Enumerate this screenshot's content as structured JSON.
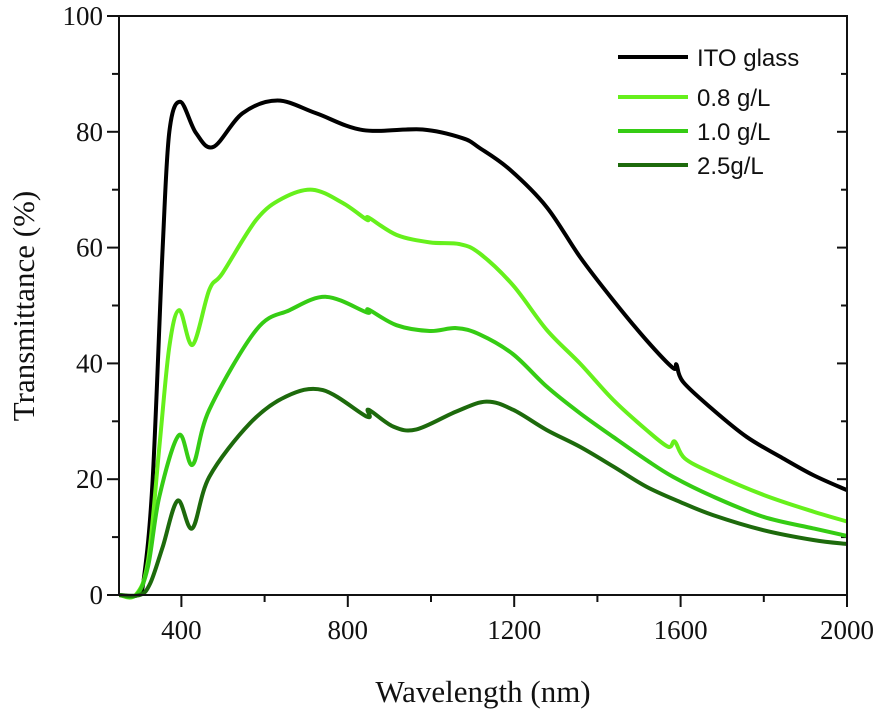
{
  "chart_data": {
    "type": "line",
    "title": "",
    "xlabel": "Wavelength (nm)",
    "ylabel": "Transmittance (%)",
    "xlim": [
      250,
      2000
    ],
    "ylim": [
      0,
      100
    ],
    "xticks": [
      400,
      800,
      1200,
      1600,
      2000
    ],
    "yticks": [
      0,
      20,
      40,
      60,
      80,
      100
    ],
    "grid": false,
    "legend_position": "top-right",
    "series": [
      {
        "name": "ITO glass",
        "color": "#000000",
        "x": [
          250,
          295,
          310,
          331,
          355,
          371,
          397,
          435,
          477,
          547,
          631,
          724,
          836,
          980,
          1076,
          1117,
          1189,
          1278,
          1358,
          1437,
          1518,
          1582,
          1590,
          1606,
          1678,
          1759,
          1839,
          1919,
          2000
        ],
        "y": [
          0,
          0,
          3,
          20,
          60,
          80,
          85.2,
          79.8,
          77.4,
          83.2,
          85.4,
          83.2,
          80.3,
          80.4,
          78.9,
          77.2,
          73.5,
          67,
          58.4,
          51,
          44,
          39.2,
          39.8,
          36.8,
          32,
          27.3,
          23.9,
          20.7,
          18.1
        ]
      },
      {
        "name": "0.8 g/L",
        "color": "#66f01c",
        "x": [
          250,
          290,
          320,
          347,
          371,
          395,
          427,
          467,
          499,
          580,
          643,
          715,
          788,
          846,
          850,
          917,
          997,
          1069,
          1117,
          1197,
          1278,
          1358,
          1438,
          1518,
          1570,
          1586,
          1610,
          1678,
          1799,
          1919,
          2000
        ],
        "y": [
          0,
          0,
          6,
          25.6,
          42.9,
          49.2,
          43.2,
          52.7,
          55.6,
          64.8,
          68.5,
          70,
          67.7,
          64.8,
          65.2,
          62.2,
          60.9,
          60.6,
          59,
          53.5,
          45.8,
          40,
          33.7,
          28.5,
          25.6,
          26.5,
          23.6,
          21,
          17.3,
          14.4,
          12.7
        ]
      },
      {
        "name": "1.0 g/L",
        "color": "#35cc14",
        "x": [
          250,
          292,
          320,
          347,
          394,
          427,
          467,
          580,
          660,
          748,
          846,
          850,
          917,
          997,
          1061,
          1117,
          1197,
          1278,
          1358,
          1438,
          1518,
          1582,
          1678,
          1799,
          1919,
          2000
        ],
        "y": [
          0,
          0,
          5,
          17,
          27.6,
          22.5,
          32,
          45.8,
          49.2,
          51.5,
          48.8,
          49.3,
          46.6,
          45.6,
          46.1,
          45,
          41.6,
          36,
          31.4,
          27.3,
          23.3,
          20.4,
          17,
          13.5,
          11.5,
          10.2
        ]
      },
      {
        "name": "2.5g/L",
        "color": "#1d6a0c",
        "x": [
          250,
          300,
          325,
          355,
          391,
          426,
          467,
          564,
          652,
          740,
          846,
          850,
          909,
          965,
          1061,
          1133,
          1197,
          1278,
          1358,
          1438,
          1518,
          1598,
          1678,
          1799,
          1919,
          2000
        ],
        "y": [
          0,
          0,
          2,
          8.3,
          16.3,
          11.5,
          20.4,
          29.6,
          34.3,
          35.4,
          30.8,
          32,
          29.1,
          28.6,
          31.7,
          33.4,
          32,
          28.5,
          25.6,
          22.2,
          18.7,
          16.1,
          13.8,
          11.2,
          9.5,
          8.8
        ]
      }
    ]
  }
}
